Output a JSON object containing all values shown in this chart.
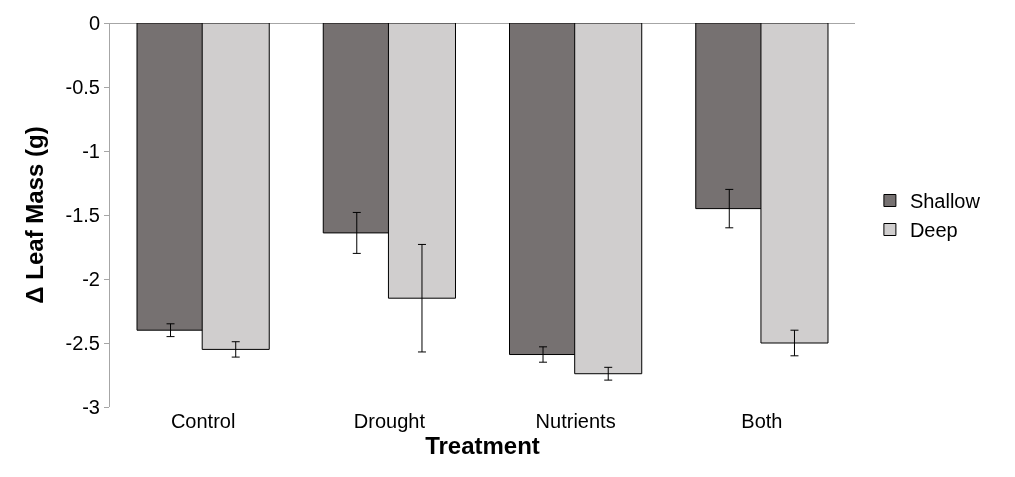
{
  "chart_data": {
    "type": "bar",
    "xlabel": "Treatment",
    "ylabel": "Δ Leaf Mass (g)",
    "categories": [
      "Control",
      "Drought",
      "Nutrients",
      "Both"
    ],
    "series": [
      {
        "name": "Shallow",
        "color": "#767171",
        "values": [
          -2.4,
          -1.64,
          -2.59,
          -1.45
        ],
        "errors": [
          0.05,
          0.16,
          0.06,
          0.15
        ]
      },
      {
        "name": "Deep",
        "color": "#d0cece",
        "values": [
          -2.55,
          -2.15,
          -2.74,
          -2.5
        ],
        "errors": [
          0.06,
          0.42,
          0.05,
          0.1
        ]
      }
    ],
    "ylim": [
      -3,
      0
    ],
    "yticks": [
      -3,
      -2.5,
      -2,
      -1.5,
      -1,
      -0.5,
      0
    ],
    "legend": "right"
  }
}
